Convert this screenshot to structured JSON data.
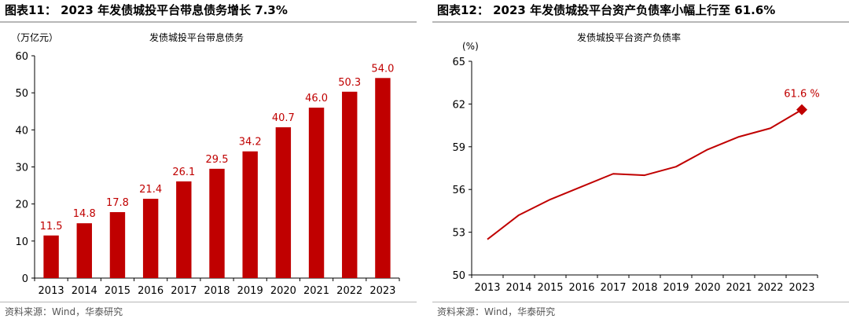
{
  "left": {
    "figure_title": "图表11： 2023 年发债城投平台带息债务增长 7.3%",
    "source": "资料来源：Wind，华泰研究"
  },
  "right": {
    "figure_title": "图表12： 2023 年发债城投平台资产负债率小幅上行至 61.6%",
    "source": "资料来源：Wind，华泰研究"
  },
  "chart_data": [
    {
      "type": "bar",
      "title": "发债城投平台带息债务",
      "unit_label": "（万亿元）",
      "categories": [
        "2013",
        "2014",
        "2015",
        "2016",
        "2017",
        "2018",
        "2019",
        "2020",
        "2021",
        "2022",
        "2023"
      ],
      "values": [
        11.5,
        14.8,
        17.8,
        21.4,
        26.1,
        29.5,
        34.2,
        40.7,
        46.0,
        50.3,
        54.0
      ],
      "value_labels": [
        "11.5",
        "14.8",
        "17.8",
        "21.4",
        "26.1",
        "29.5",
        "34.2",
        "40.7",
        "46.0",
        "50.3",
        "54.0"
      ],
      "ylim": [
        0,
        60
      ],
      "yticks": [
        0,
        10,
        20,
        30,
        40,
        50,
        60
      ],
      "grid": false,
      "bar_color": "#c00000",
      "label_color": "#c00000"
    },
    {
      "type": "line",
      "title": "发债城投平台资产负债率",
      "unit_label": "(%)",
      "categories": [
        "2013",
        "2014",
        "2015",
        "2016",
        "2017",
        "2018",
        "2019",
        "2020",
        "2021",
        "2022",
        "2023"
      ],
      "values": [
        52.5,
        54.2,
        55.3,
        56.2,
        57.1,
        57.0,
        57.6,
        58.8,
        59.7,
        60.3,
        61.6
      ],
      "ylim": [
        50,
        65
      ],
      "yticks": [
        50,
        53,
        56,
        59,
        62,
        65
      ],
      "grid": false,
      "line_color": "#c00000",
      "end_marker": "diamond",
      "end_label": "61.6 %"
    }
  ]
}
